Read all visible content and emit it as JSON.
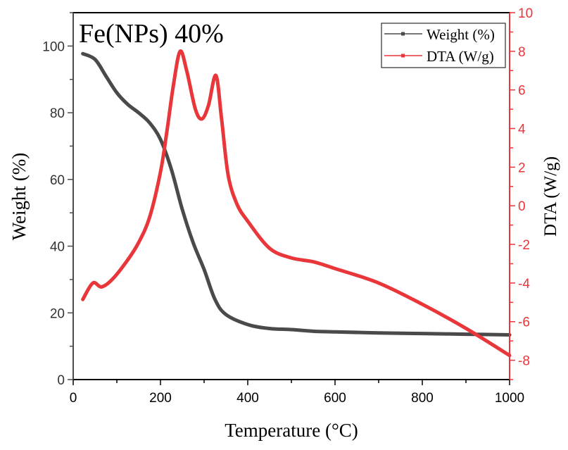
{
  "chart_data": {
    "type": "line",
    "title": "Fe(NPs) 40%",
    "xlabel": "Temperature (°C)",
    "ylabel": "Weight (%)",
    "y2label": "DTA (W/g)",
    "xlim": [
      0,
      1000
    ],
    "ylim": [
      0,
      110
    ],
    "y2lim": [
      -9,
      10
    ],
    "xticks": [
      0,
      200,
      400,
      600,
      800,
      1000
    ],
    "yticks": [
      0,
      20,
      40,
      60,
      80,
      100
    ],
    "y2ticks": [
      -8,
      -6,
      -4,
      -2,
      0,
      2,
      4,
      6,
      8,
      10
    ],
    "grid": false,
    "legend_position": "top-right",
    "series": [
      {
        "name": "Weight (%)",
        "axis": "left",
        "color": "#4a4a4a",
        "x": [
          22,
          50,
          75,
          100,
          125,
          150,
          175,
          200,
          225,
          250,
          275,
          300,
          325,
          350,
          400,
          450,
          500,
          550,
          600,
          700,
          800,
          900,
          1000
        ],
        "y": [
          97.7,
          96,
          91,
          86,
          82.5,
          80,
          77,
          72,
          63,
          51,
          41,
          33,
          24,
          19.5,
          16.5,
          15.3,
          15,
          14.5,
          14.3,
          14,
          13.8,
          13.6,
          13.4
        ]
      },
      {
        "name": "DTA (W/g)",
        "axis": "right",
        "color": "#e8363a",
        "x": [
          22,
          45,
          65,
          90,
          125,
          150,
          175,
          200,
          215,
          230,
          245,
          260,
          280,
          295,
          310,
          327,
          340,
          355,
          375,
          400,
          450,
          500,
          550,
          600,
          700,
          800,
          900,
          1000
        ],
        "y": [
          -4.85,
          -4.0,
          -4.2,
          -3.8,
          -2.8,
          -1.9,
          -0.6,
          1.75,
          3.9,
          6.3,
          8.0,
          7.0,
          5.0,
          4.5,
          5.2,
          6.75,
          4.5,
          1.6,
          0.1,
          -0.8,
          -2.2,
          -2.7,
          -2.9,
          -3.25,
          -4.0,
          -5.1,
          -6.35,
          -7.75
        ]
      }
    ]
  }
}
